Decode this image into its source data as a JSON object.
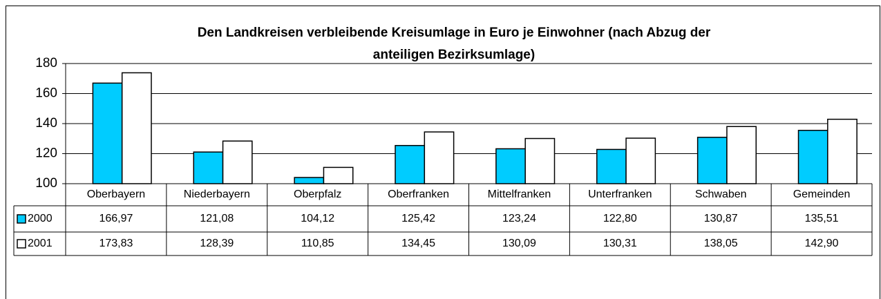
{
  "chart_data": {
    "type": "bar",
    "title": [
      "Den Landkreisen verbleibende Kreisumlage in Euro je Einwohner (nach Abzug der",
      "anteiligen Bezirksumlage)"
    ],
    "categories": [
      "Oberbayern",
      "Niederbayern",
      "Oberpfalz",
      "Oberfranken",
      "Mittelfranken",
      "Unterfranken",
      "Schwaben",
      "Gemeinden"
    ],
    "series": [
      {
        "name": "2000",
        "color": "#00ccff",
        "values": [
          166.97,
          121.08,
          104.12,
          125.42,
          123.24,
          122.8,
          130.87,
          135.51
        ],
        "value_labels": [
          "166,97",
          "121,08",
          "104,12",
          "125,42",
          "123,24",
          "122,80",
          "130,87",
          "135,51"
        ]
      },
      {
        "name": "2001",
        "color": "#ffffff",
        "values": [
          173.83,
          128.39,
          110.85,
          134.45,
          130.09,
          130.31,
          138.05,
          142.9
        ],
        "value_labels": [
          "173,83",
          "128,39",
          "110,85",
          "134,45",
          "130,09",
          "130,31",
          "138,05",
          "142,90"
        ]
      }
    ],
    "ylim": [
      100,
      180
    ],
    "yticks": [
      100,
      120,
      140,
      160,
      180
    ],
    "grid": true
  }
}
